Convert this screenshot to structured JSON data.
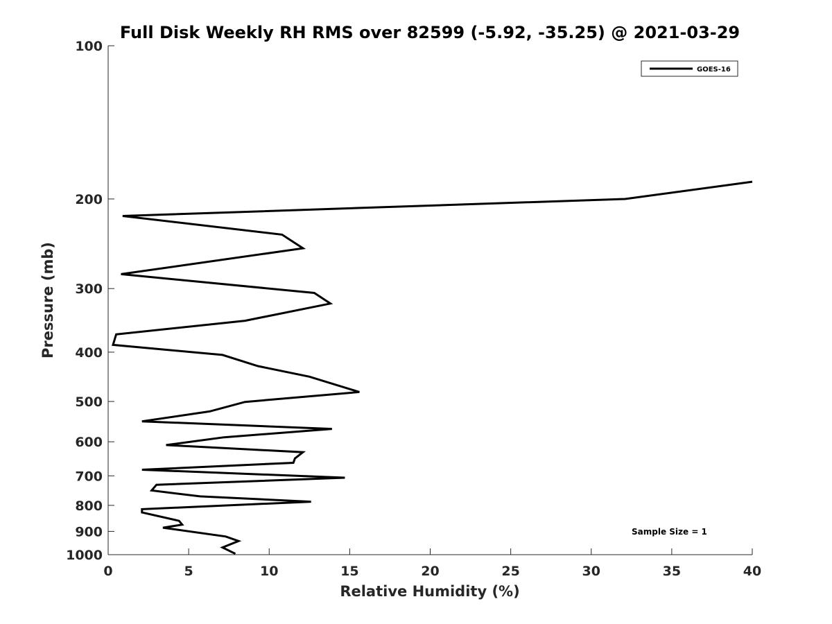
{
  "chart_data": {
    "type": "line",
    "title": "Full Disk Weekly RH RMS over 82599 (-5.92, -35.25) @ 2021-03-29",
    "xlabel": "Relative Humidity (%)",
    "ylabel": "Pressure (mb)",
    "xlim": [
      0,
      40
    ],
    "ylim": [
      100,
      1000
    ],
    "y_scale": "log",
    "y_reversed": true,
    "x_ticks": [
      0,
      5,
      10,
      15,
      20,
      25,
      30,
      35,
      40
    ],
    "y_ticks": [
      100,
      200,
      300,
      400,
      500,
      600,
      700,
      800,
      900,
      1000
    ],
    "grid": false,
    "legend_position": "top-right",
    "annotation": "Sample Size = 1",
    "series": [
      {
        "name": "GOES-16",
        "color": "#000000",
        "x": [
          40.0,
          32.1,
          0.9,
          10.8,
          12.1,
          0.8,
          12.8,
          13.8,
          8.5,
          0.5,
          0.3,
          7.1,
          9.3,
          12.5,
          15.6,
          8.5,
          6.3,
          2.1,
          13.9,
          7.2,
          3.6,
          12.1,
          11.6,
          11.5,
          2.1,
          14.7,
          3.0,
          2.7,
          5.7,
          12.6,
          2.1,
          2.1,
          4.4,
          4.6,
          3.4,
          7.3,
          8.1,
          7.1,
          7.9
        ],
        "y": [
          185,
          200,
          216,
          235,
          250,
          281,
          306,
          321,
          347,
          369,
          387,
          405,
          426,
          447,
          479,
          501,
          523,
          547,
          566,
          588,
          609,
          629,
          647,
          660,
          681,
          706,
          729,
          748,
          768,
          787,
          814,
          826,
          858,
          873,
          885,
          921,
          940,
          968,
          996
        ]
      }
    ]
  }
}
